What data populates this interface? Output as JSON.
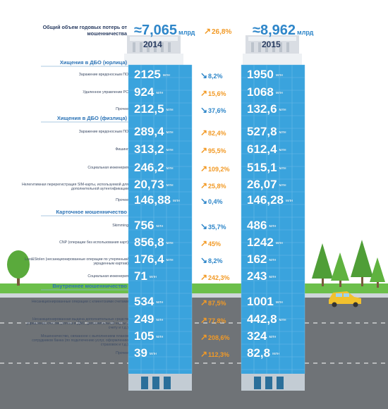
{
  "header": {
    "title": "Общий объем годовых потерь от мошенничества",
    "total_2014": "≈7,065",
    "total_2015": "≈8,962",
    "unit_total": "млрд",
    "total_change": "26,8%",
    "year_2014": "2014",
    "year_2015": "2015"
  },
  "unit_value": "млн",
  "sections": [
    {
      "title": "Хищения в ДБО (юрлица)",
      "rows": [
        {
          "label": "Заражение вредоносным ПО",
          "v2014": "2125",
          "v2015": "1950",
          "change": "8,2%",
          "direction": "down"
        },
        {
          "label": "Удаленное управление PC",
          "v2014": "924",
          "v2015": "1068",
          "change": "15,6%",
          "direction": "up"
        },
        {
          "label": "Прочее",
          "v2014": "212,5",
          "v2015": "132,6",
          "change": "37,6%",
          "direction": "down"
        }
      ]
    },
    {
      "title": "Хищения в ДБО (физлица)",
      "rows": [
        {
          "label": "Заражение вредоносным ПО",
          "v2014": "289,4",
          "v2015": "527,8",
          "change": "82,4%",
          "direction": "up"
        },
        {
          "label": "Фишинг",
          "v2014": "313,2",
          "v2015": "612,4",
          "change": "95,5%",
          "direction": "up"
        },
        {
          "label": "Социальная инженерия",
          "v2014": "246,2",
          "v2015": "515,1",
          "change": "109,2%",
          "direction": "up"
        },
        {
          "label": "Нелегитимная перерегистрация SIM-карты, используемой для дополнительной аутентификации",
          "v2014": "20,73",
          "v2015": "26,07",
          "change": "25,8%",
          "direction": "up"
        },
        {
          "label": "Прочее",
          "v2014": "146,88",
          "v2015": "146,28",
          "change": "0,4%",
          "direction": "down"
        }
      ]
    },
    {
      "title": "Карточное мошенничество",
      "rows": [
        {
          "label": "Skimming",
          "v2014": "756",
          "v2015": "486",
          "change": "35,7%",
          "direction": "down"
        },
        {
          "label": "CNP (операции без использования карт)",
          "v2014": "856,8",
          "v2015": "1242",
          "change": "45%",
          "direction": "up"
        },
        {
          "label": "Lost&Stolen (несанкционированные операции по утерянным/украденным картам)",
          "v2014": "176,4",
          "v2015": "162",
          "change": "8,2%",
          "direction": "down"
        },
        {
          "label": "Социальная инженерия",
          "v2014": "71",
          "v2015": "243",
          "change": "242,3%",
          "direction": "up"
        }
      ]
    },
    {
      "title": "Внутреннее мошенничество",
      "rows": [
        {
          "label": "Несанкционированные операции с клиентскими счетами",
          "v2014": "534",
          "v2015": "1001",
          "change": "87,5%",
          "direction": "up"
        },
        {
          "label": "Несанкционированная выдача дополнительных средств управления счетом (логина в ДБО, дополнительной карты к счету и т.д.)",
          "v2014": "249",
          "v2015": "442,8",
          "change": "77,8%",
          "direction": "up"
        },
        {
          "label": "Мошенничество, связанное с выполнением планов сотрудников банка (по подключению услуг, оформлению страховок и т.д.)",
          "v2014": "105",
          "v2015": "324",
          "change": "208,6%",
          "direction": "up"
        },
        {
          "label": "Прочее",
          "v2014": "39",
          "v2015": "82,8",
          "change": "112,3%",
          "direction": "up"
        }
      ]
    }
  ]
}
